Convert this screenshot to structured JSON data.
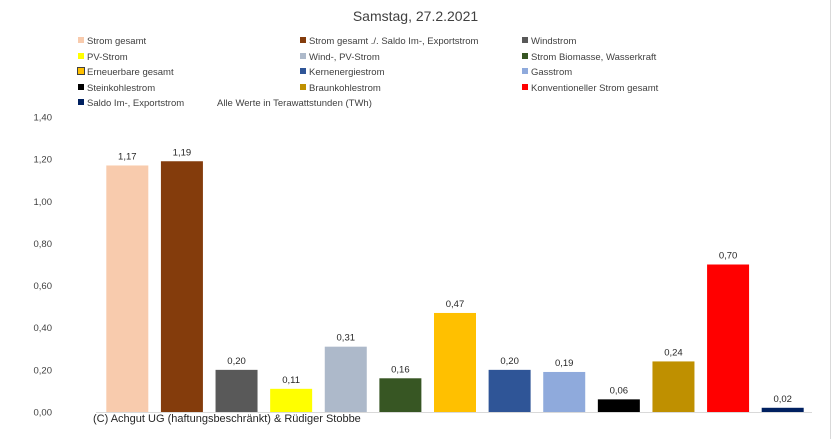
{
  "chart_data": {
    "type": "bar",
    "title": "Samstag, 27.2.2021",
    "note": "Alle Werte in Terawattstunden (TWh)",
    "ylim": [
      0,
      1.4
    ],
    "yticks": [
      "0,00",
      "0,20",
      "0,40",
      "0,60",
      "0,80",
      "1,00",
      "1,20",
      "1,40"
    ],
    "grid": false,
    "legend_position": "top",
    "series": [
      {
        "name": "Strom gesamt",
        "value": 1.17,
        "label": "1,17",
        "color": "#f8cbad"
      },
      {
        "name": "Strom gesamt ./. Saldo Im-, Exportstrom",
        "value": 1.19,
        "label": "1,19",
        "color": "#843c0c"
      },
      {
        "name": "Windstrom",
        "value": 0.2,
        "label": "0,20",
        "color": "#595959"
      },
      {
        "name": "PV-Strom",
        "value": 0.11,
        "label": "0,11",
        "color": "#ffff00"
      },
      {
        "name": "Wind-, PV-Strom",
        "value": 0.31,
        "label": "0,31",
        "color": "#adb9ca"
      },
      {
        "name": "Strom Biomasse, Wasserkraft",
        "value": 0.16,
        "label": "0,16",
        "color": "#375623"
      },
      {
        "name": "Erneuerbare gesamt",
        "value": 0.47,
        "label": "0,47",
        "color": "#ffc000"
      },
      {
        "name": "Kernenergiestrom",
        "value": 0.2,
        "label": "0,20",
        "color": "#2f5597"
      },
      {
        "name": "Gasstrom",
        "value": 0.19,
        "label": "0,19",
        "color": "#8faadc"
      },
      {
        "name": "Steinkohlestrom",
        "value": 0.06,
        "label": "0,06",
        "color": "#000000"
      },
      {
        "name": "Braunkohlestrom",
        "value": 0.24,
        "label": "0,24",
        "color": "#bf9000"
      },
      {
        "name": "Konventioneller Strom gesamt",
        "value": 0.7,
        "label": "0,70",
        "color": "#ff0000"
      },
      {
        "name": "Saldo Im-, Exportstrom",
        "value": 0.02,
        "label": "0,02",
        "color": "#002060"
      }
    ]
  },
  "credit": "(C) Achgut UG (haftungsbeschränkt) & Rüdiger Stobbe"
}
